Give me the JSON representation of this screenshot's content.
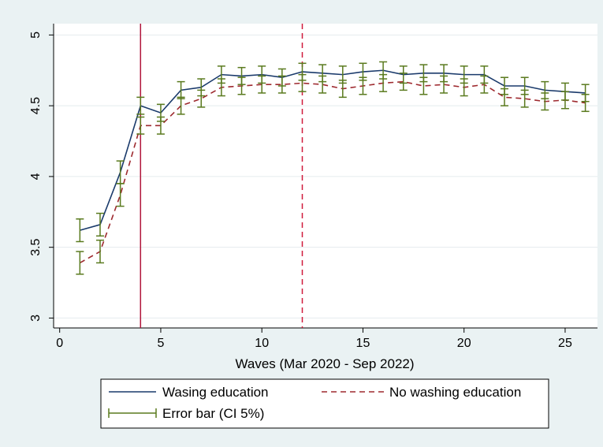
{
  "chart_data": {
    "type": "line",
    "title": "",
    "xlabel": "Waves (Mar 2020 - Sep 2022)",
    "ylabel": "",
    "xlim": [
      -0.3,
      26.6
    ],
    "ylim": [
      2.93,
      5.08
    ],
    "x_ticks": [
      0,
      5,
      10,
      15,
      20,
      25
    ],
    "x_tick_labels": [
      "0",
      "5",
      "10",
      "15",
      "20",
      "25"
    ],
    "y_ticks": [
      3,
      3.5,
      4,
      4.5,
      5
    ],
    "y_tick_labels": [
      "3",
      "3.5",
      "4",
      "4.5",
      "5"
    ],
    "grid": "horizontal",
    "x": [
      1,
      2,
      3,
      4,
      5,
      6,
      7,
      8,
      9,
      10,
      11,
      12,
      13,
      14,
      15,
      16,
      17,
      18,
      19,
      20,
      21,
      22,
      23,
      24,
      25,
      26
    ],
    "series": [
      {
        "name": "Wasing education",
        "color": "#1a3a6b",
        "style": "solid",
        "values": [
          3.62,
          3.66,
          4.03,
          4.5,
          4.45,
          4.61,
          4.63,
          4.72,
          4.71,
          4.72,
          4.7,
          4.74,
          4.73,
          4.72,
          4.74,
          4.75,
          4.72,
          4.73,
          4.73,
          4.72,
          4.72,
          4.64,
          4.64,
          4.61,
          4.6,
          4.59
        ],
        "ci_low": [
          3.54,
          3.58,
          3.95,
          4.44,
          4.39,
          4.55,
          4.57,
          4.66,
          4.65,
          4.66,
          4.64,
          4.68,
          4.67,
          4.66,
          4.68,
          4.69,
          4.66,
          4.67,
          4.67,
          4.66,
          4.66,
          4.58,
          4.58,
          4.55,
          4.54,
          4.53
        ],
        "ci_high": [
          3.7,
          3.74,
          4.11,
          4.56,
          4.51,
          4.67,
          4.69,
          4.78,
          4.77,
          4.78,
          4.76,
          4.8,
          4.79,
          4.78,
          4.8,
          4.81,
          4.78,
          4.79,
          4.79,
          4.78,
          4.78,
          4.7,
          4.7,
          4.67,
          4.66,
          4.65
        ]
      },
      {
        "name": "No washing education",
        "color": "#9e2a2f",
        "style": "dashed",
        "values": [
          3.39,
          3.47,
          3.87,
          4.36,
          4.36,
          4.5,
          4.55,
          4.63,
          4.64,
          4.65,
          4.65,
          4.66,
          4.65,
          4.62,
          4.64,
          4.66,
          4.67,
          4.64,
          4.65,
          4.63,
          4.65,
          4.56,
          4.55,
          4.53,
          4.54,
          4.52
        ],
        "ci_low": [
          3.31,
          3.39,
          3.79,
          4.3,
          4.3,
          4.44,
          4.49,
          4.57,
          4.58,
          4.59,
          4.59,
          4.6,
          4.59,
          4.56,
          4.58,
          4.6,
          4.61,
          4.58,
          4.59,
          4.57,
          4.59,
          4.5,
          4.49,
          4.47,
          4.48,
          4.46
        ],
        "ci_high": [
          3.47,
          3.55,
          3.95,
          4.42,
          4.42,
          4.56,
          4.61,
          4.69,
          4.7,
          4.71,
          4.71,
          4.72,
          4.71,
          4.68,
          4.7,
          4.72,
          4.73,
          4.7,
          4.71,
          4.69,
          4.71,
          4.62,
          4.61,
          4.59,
          4.6,
          4.58
        ]
      }
    ],
    "error_bars": {
      "name": "Error bar (CI 5%)",
      "color": "#5a7a1e"
    },
    "reference_lines": [
      {
        "x": 4,
        "style": "solid",
        "color": "#b0163b"
      },
      {
        "x": 12,
        "style": "dashed",
        "color": "#d01a3b"
      }
    ],
    "legend": {
      "placement": "bottom",
      "entries": [
        "Wasing education",
        "No washing education",
        "Error bar (CI 5%)"
      ]
    }
  }
}
